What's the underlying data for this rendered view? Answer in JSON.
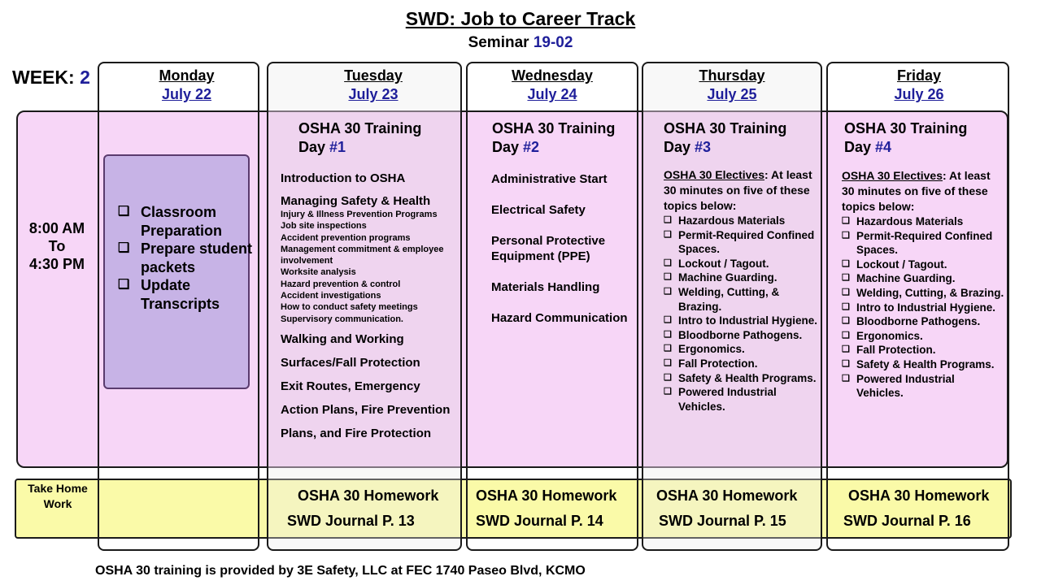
{
  "header": {
    "title": "SWD: Job to Career Track",
    "subtitle_label": "Seminar",
    "subtitle_value": "19-02"
  },
  "week": {
    "label": "WEEK:",
    "value": "2"
  },
  "days": [
    {
      "name": "Monday",
      "date": "July 22"
    },
    {
      "name": "Tuesday",
      "date": "July 23"
    },
    {
      "name": "Wednesday",
      "date": "July 24"
    },
    {
      "name": "Thursday",
      "date": "July 25"
    },
    {
      "name": "Friday",
      "date": "July 26"
    }
  ],
  "time": {
    "start": "8:00 AM",
    "sep": "To",
    "end": "4:30 PM"
  },
  "monday": {
    "checkbox": "❑",
    "items": [
      "Classroom Preparation",
      "Prepare student packets",
      "Update Transcripts"
    ]
  },
  "tuesday": {
    "title": "OSHA 30 Training",
    "day_label": "Day",
    "day_num": "#1",
    "intro": "Introduction to OSHA",
    "section": "Managing Safety & Health",
    "sub_items": [
      "Injury & Illness Prevention Programs",
      "Job site inspections",
      "Accident prevention programs",
      "Management commitment & employee involvement",
      "Worksite analysis",
      "Hazard prevention & control",
      "Accident investigations",
      "How to conduct safety meetings",
      "Supervisory communication."
    ],
    "more": [
      "Walking and Working",
      "Surfaces/Fall Protection",
      "Exit Routes, Emergency",
      "Action Plans, Fire Prevention",
      "Plans, and Fire Protection"
    ]
  },
  "wednesday": {
    "title": "OSHA 30 Training",
    "day_label": "Day",
    "day_num": "#2",
    "items": [
      "Administrative Start",
      "Electrical Safety",
      "Personal Protective Equipment (PPE)",
      "Materials Handling",
      "Hazard Communication"
    ]
  },
  "thursday": {
    "title": "OSHA 30 Training",
    "day_label": "Day",
    "day_num": "#3",
    "electives_head": "OSHA 30 Electives",
    "electives_text": ": At least 30 minutes on five of these topics below:",
    "items": [
      "Hazardous Materials",
      "Permit-Required Confined Spaces.",
      "Lockout / Tagout.",
      "Machine Guarding.",
      "Welding, Cutting, & Brazing.",
      "Intro to Industrial Hygiene.",
      "Bloodborne Pathogens.",
      "Ergonomics.",
      "Fall Protection.",
      "Safety & Health Programs.",
      "Powered Industrial Vehicles."
    ]
  },
  "friday": {
    "title": "OSHA 30 Training",
    "day_label": "Day",
    "day_num": "#4",
    "electives_head": "OSHA 30 Electives",
    "electives_text": ": At least 30 minutes on five of these topics below:",
    "items": [
      "Hazardous Materials",
      "Permit-Required Confined Spaces.",
      "Lockout / Tagout.",
      "Machine Guarding.",
      "Welding, Cutting, & Brazing.",
      "Intro to Industrial Hygiene.",
      "Bloodborne Pathogens.",
      "Ergonomics.",
      "Fall Protection.",
      "Safety & Health Programs.",
      "Powered Industrial Vehicles."
    ]
  },
  "homework": {
    "label": "Take Home Work",
    "items": [
      {
        "line1": "OSHA 30 Homework",
        "line2": "SWD Journal P. 13"
      },
      {
        "line1": "OSHA 30 Homework",
        "line2": "SWD Journal P. 14"
      },
      {
        "line1": "OSHA 30 Homework",
        "line2": "SWD Journal P. 15"
      },
      {
        "line1": "OSHA 30 Homework",
        "line2": "SWD Journal P. 16"
      }
    ]
  },
  "footer": "OSHA 30 training  is provided  by 3E Safety, LLC at FEC 1740 Paseo Blvd, KCMO"
}
